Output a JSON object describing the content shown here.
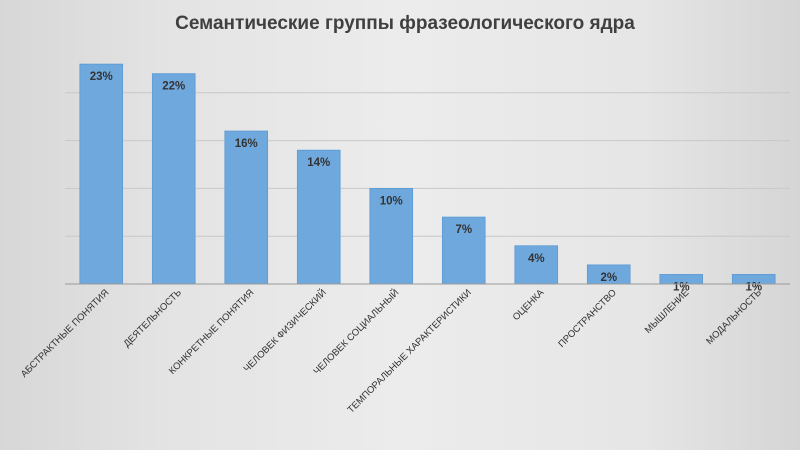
{
  "chart_data": {
    "type": "bar",
    "title": "Семантические группы фразеологического ядра",
    "categories": [
      "АБСТРАКТНЫЕ ПОНЯТИЯ",
      "ДЕЯТЕЛЬНОСТЬ",
      "КОНКРЕТНЫЕ ПОНЯТИЯ",
      "ЧЕЛОВЕК ФИЗИЧЕСКИЙ",
      "ЧЕЛОВЕК СОЦИАЛЬНЫЙ",
      "ТЕМПОРАЛЬНЫЕ ХАРАКТЕРИСТИКИ",
      "ОЦЕНКА",
      "ПРОСТРАНСТВО",
      "МЫШЛЕНИЕ",
      "МОДАЛЬНОСТЬ"
    ],
    "values": [
      23,
      22,
      16,
      14,
      10,
      7,
      4,
      2,
      1,
      1
    ],
    "data_labels": [
      "23%",
      "22%",
      "16%",
      "14%",
      "10%",
      "7%",
      "4%",
      "2%",
      "1%",
      "1%"
    ],
    "unit": "%",
    "ylim": [
      0,
      25
    ],
    "gridlines": [
      5,
      10,
      15,
      20
    ],
    "grid": true,
    "legend": "none",
    "bar_color": "#6fa8dc",
    "bar_edge_color": "#5b9bd5",
    "grid_color": "#c8c8c8",
    "axis_color": "#9a9a9a"
  }
}
